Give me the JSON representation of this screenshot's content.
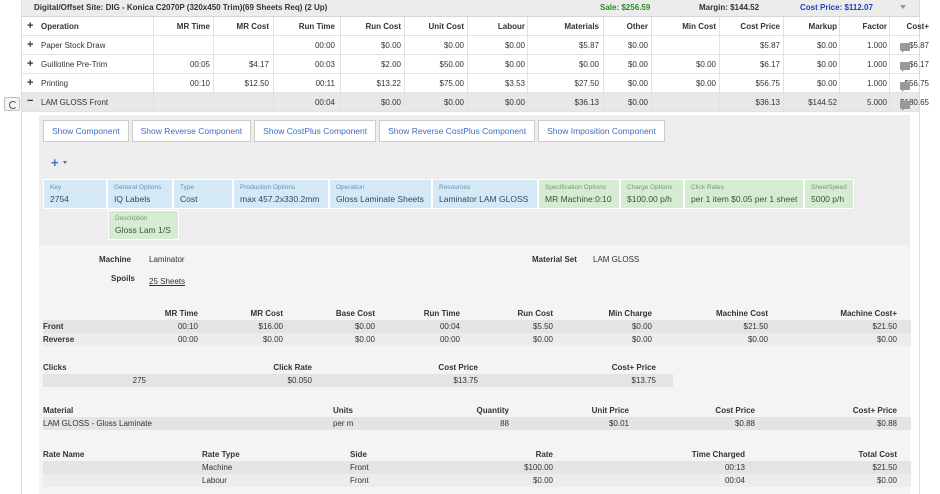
{
  "topbar": {
    "title": "Digital/Offset Site: DIG - Konica C2070P (320x450 Trim)(69 Sheets Req) (2 Up)",
    "sale": "Sale: $256.59",
    "margin": "Margin: $144.52",
    "cost_price": "Cost Price: $112.07"
  },
  "grid": {
    "headers": [
      "Operation",
      "MR Time",
      "MR Cost",
      "Run Time",
      "Run Cost",
      "Unit Cost",
      "Labour",
      "Materials",
      "Other",
      "Min Cost",
      "Cost Price",
      "Markup",
      "Factor",
      "Cost+"
    ],
    "rows": [
      [
        "Paper Stock Draw",
        "",
        "",
        "00:00",
        "$0.00",
        "$0.00",
        "$0.00",
        "$5.87",
        "$0.00",
        "",
        "$5.87",
        "$0.00",
        "1.000",
        "$5.87"
      ],
      [
        "Guillotine Pre-Trim",
        "00:05",
        "$4.17",
        "00:03",
        "$2.00",
        "$50.00",
        "$0.00",
        "$0.00",
        "$0.00",
        "$0.00",
        "$6.17",
        "$0.00",
        "1.000",
        "$6.17"
      ],
      [
        "Printing",
        "00:10",
        "$12.50",
        "00:11",
        "$13.22",
        "$75.00",
        "$3.53",
        "$27.50",
        "$0.00",
        "$0.00",
        "$56.75",
        "$0.00",
        "1.000",
        "$56.75"
      ],
      [
        "LAM GLOSS Front",
        "",
        "",
        "00:04",
        "$0.00",
        "$0.00",
        "$0.00",
        "$36.13",
        "$0.00",
        "",
        "$36.13",
        "$144.52",
        "5.000",
        "$180.65"
      ]
    ]
  },
  "buttons": [
    "Show Component",
    "Show Reverse Component",
    "Show CostPlus Component",
    "Show Reverse CostPlus Component",
    "Show Imposition Component"
  ],
  "options": [
    {
      "label": "Key",
      "value": "2754",
      "color": "blue"
    },
    {
      "label": "General Options",
      "value": "IQ Labels",
      "color": "blue"
    },
    {
      "label": "Type",
      "value": "Cost",
      "color": "blue"
    },
    {
      "label": "Production Options",
      "value": "max 457.2x330.2mm",
      "color": "blue"
    },
    {
      "label": "Operation",
      "value": "Gloss Laminate Sheets",
      "color": "blue"
    },
    {
      "label": "Resources",
      "value": "Laminator LAM GLOSS",
      "color": "blue"
    },
    {
      "label": "Specification Options",
      "value": "MR Machine:0:10",
      "color": "green"
    },
    {
      "label": "Charge Options",
      "value": "$100.00 p/h",
      "color": "green"
    },
    {
      "label": "Click Rates",
      "value": "per 1 item $0.05 per 1 sheet",
      "color": "green"
    },
    {
      "label": "SheetSpeed",
      "value": "5000 p/h",
      "color": "green"
    }
  ],
  "description": {
    "label": "Description",
    "value": "Gloss Lam 1/S"
  },
  "machine": {
    "label": "Machine",
    "value": "Laminator"
  },
  "material_set": {
    "label": "Material Set",
    "value": "LAM GLOSS"
  },
  "spoils": {
    "label": "Spoils",
    "value": "25 Sheets"
  },
  "cost_table": {
    "headers": [
      "MR Time",
      "MR Cost",
      "Base Cost",
      "Run Time",
      "Run Cost",
      "Min Charge",
      "Machine Cost",
      "Machine Cost+"
    ],
    "rows": [
      {
        "label": "Front",
        "values": [
          "00:10",
          "$16.00",
          "$0.00",
          "00:04",
          "$5.50",
          "$0.00",
          "$21.50",
          "$21.50"
        ]
      },
      {
        "label": "Reverse",
        "values": [
          "00:00",
          "$0.00",
          "$0.00",
          "00:00",
          "$0.00",
          "$0.00",
          "$0.00",
          "$0.00"
        ]
      }
    ]
  },
  "clicks_table": {
    "headers": [
      "Clicks",
      "Click Rate",
      "Cost Price",
      "Cost+ Price"
    ],
    "values": [
      "275",
      "$0.050",
      "$13.75",
      "$13.75"
    ]
  },
  "material_table": {
    "headers": [
      "Material",
      "Units",
      "Quantity",
      "Unit Price",
      "Cost Price",
      "Cost+ Price"
    ],
    "values": [
      "LAM GLOSS - Gloss Laminate",
      "per m",
      "88",
      "$0.01",
      "$0.88",
      "$0.88"
    ]
  },
  "rate_table": {
    "headers": [
      "Rate Name",
      "Rate Type",
      "Side",
      "Rate",
      "Time Charged",
      "Total Cost"
    ],
    "rows": [
      [
        "",
        "Machine",
        "Front",
        "$100.00",
        "00:13",
        "$21.50"
      ],
      [
        "",
        "Labour",
        "Front",
        "$0.00",
        "00:04",
        "$0.00"
      ]
    ]
  }
}
